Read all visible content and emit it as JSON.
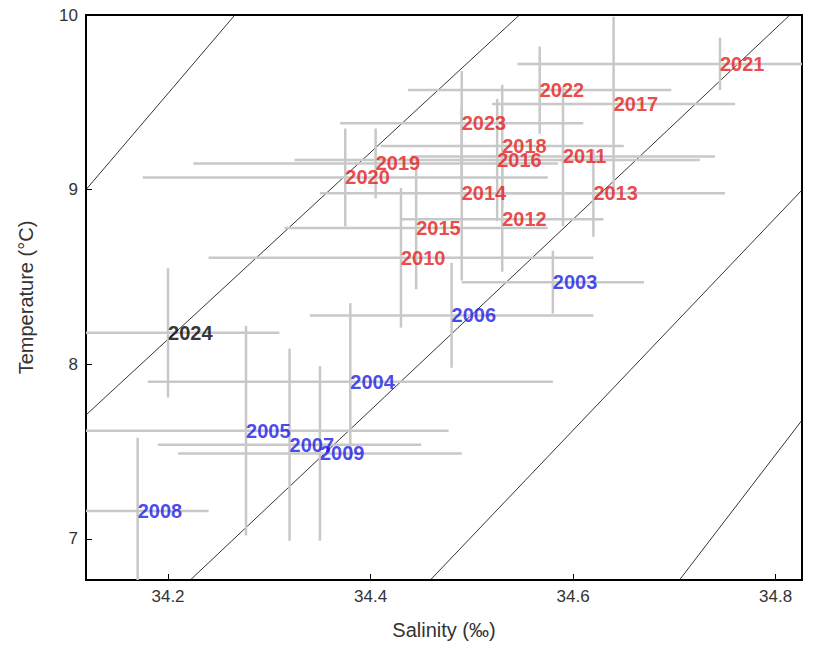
{
  "chart_data": {
    "type": "scatter",
    "x_label": "Salinity (‰)",
    "y_label": "Temperature (°C)",
    "xlim": [
      34.119,
      34.826
    ],
    "ylim": [
      6.765,
      10
    ],
    "xticks": [
      34.2,
      34.4,
      34.6,
      34.8
    ],
    "yticks": [
      7,
      8,
      9,
      10
    ],
    "grid": false,
    "labels": [
      "2008",
      "2005",
      "2007",
      "2009",
      "2004",
      "2006",
      "2003",
      "2024",
      "2010",
      "2015",
      "2020",
      "2019",
      "2014",
      "2012",
      "2023",
      "2018",
      "2016",
      "2011",
      "2013",
      "2022",
      "2017",
      "2021"
    ],
    "x": [
      34.17,
      34.277,
      34.32,
      34.35,
      34.38,
      34.48,
      34.58,
      34.2,
      34.43,
      34.445,
      34.375,
      34.405,
      34.49,
      34.53,
      34.49,
      34.53,
      34.525,
      34.59,
      34.62,
      34.567,
      34.64,
      34.745
    ],
    "values": [
      7.16,
      7.62,
      7.54,
      7.49,
      7.9,
      8.28,
      8.47,
      8.18,
      8.61,
      8.78,
      9.07,
      9.15,
      8.98,
      8.83,
      9.38,
      9.25,
      9.17,
      9.19,
      8.98,
      9.57,
      9.49,
      9.72
    ],
    "x_error": [
      0.07,
      0.2,
      0.13,
      0.14,
      0.2,
      0.14,
      0.09,
      0.11,
      0.19,
      0.13,
      0.2,
      0.18,
      0.14,
      0.1,
      0.12,
      0.12,
      0.2,
      0.15,
      0.13,
      0.13,
      0.12,
      0.2
    ],
    "y_error": [
      0.42,
      0.6,
      0.55,
      0.5,
      0.45,
      0.3,
      0.18,
      0.37,
      0.4,
      0.35,
      0.28,
      0.2,
      0.5,
      0.3,
      0.3,
      0.35,
      0.35,
      0.4,
      0.25,
      0.25,
      0.5,
      0.15
    ],
    "colors": [
      "#1a1ae6",
      "#1a1ae6",
      "#1a1ae6",
      "#1a1ae6",
      "#1a1ae6",
      "#1a1ae6",
      "#1a1ae6",
      "#000000",
      "#e61a1a",
      "#e61a1a",
      "#e61a1a",
      "#e61a1a",
      "#e61a1a",
      "#e61a1a",
      "#e61a1a",
      "#e61a1a",
      "#e61a1a",
      "#e61a1a",
      "#e61a1a",
      "#e61a1a",
      "#e61a1a",
      "#e61a1a"
    ],
    "contours": [
      [
        [
          34.119,
          9.0
        ],
        [
          34.266,
          10
        ]
      ],
      [
        [
          34.119,
          7.71
        ],
        [
          34.547,
          10
        ]
      ],
      [
        [
          34.222,
          6.765
        ],
        [
          34.814,
          10
        ]
      ],
      [
        [
          34.459,
          6.765
        ],
        [
          34.826,
          8.998
        ]
      ],
      [
        [
          34.705,
          6.765
        ],
        [
          34.826,
          7.68
        ]
      ]
    ]
  }
}
